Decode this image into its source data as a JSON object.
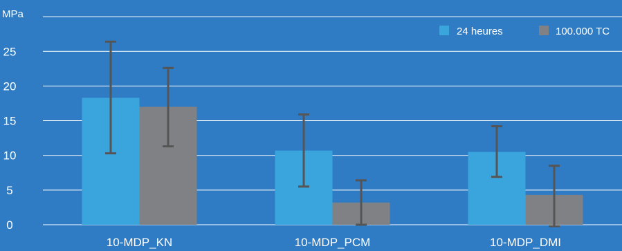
{
  "colors": {
    "background": "#2f7bc4",
    "gridline": "#ffffff",
    "text": "#ffffff",
    "error_bar": "#555555"
  },
  "chart_data": {
    "type": "bar",
    "title": "",
    "xlabel": "",
    "ylabel": "MPa",
    "ylim": [
      0,
      30
    ],
    "yticks": [
      0,
      5,
      10,
      15,
      20,
      25
    ],
    "grid": true,
    "legend_position": "top-right",
    "categories": [
      "10-MDP_KN",
      "10-MDP_PCM",
      "10-MDP_DMI"
    ],
    "series": [
      {
        "name": "24 heures",
        "color": "#3aa4dd",
        "values": [
          18.3,
          10.7,
          10.5
        ],
        "error_low": [
          10.3,
          5.5,
          6.9
        ],
        "error_high": [
          26.4,
          15.9,
          14.2
        ]
      },
      {
        "name": "100.000 TC",
        "color": "#808184",
        "values": [
          17.0,
          3.2,
          4.3
        ],
        "error_low": [
          11.3,
          0,
          -0.2
        ],
        "error_high": [
          22.6,
          6.4,
          8.5
        ]
      }
    ]
  }
}
